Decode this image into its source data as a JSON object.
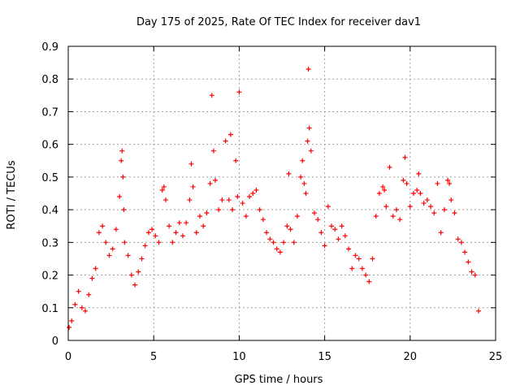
{
  "chart_data": {
    "type": "scatter",
    "title": "Day 175 of 2025, Rate Of TEC Index for receiver dav1",
    "xlabel": "GPS time / hours",
    "ylabel": "ROTI / TECUs",
    "xlim": [
      0,
      25
    ],
    "ylim": [
      0,
      0.9
    ],
    "x_ticks": [
      0,
      5,
      10,
      15,
      20,
      25
    ],
    "y_ticks": [
      0,
      0.1,
      0.2,
      0.3,
      0.4,
      0.5,
      0.6,
      0.7,
      0.8,
      0.9
    ],
    "x_tick_labels": [
      "0",
      "5",
      "10",
      "15",
      "20",
      "25"
    ],
    "y_tick_labels": [
      "0",
      "0.1",
      "0.2",
      "0.3",
      "0.4",
      "0.5",
      "0.6",
      "0.7",
      "0.8",
      "0.9"
    ],
    "grid": true,
    "marker": "+",
    "color": "#ff0000",
    "series": [
      {
        "x": [
          0.05,
          0.2,
          0.4,
          0.6,
          0.8,
          1.0,
          1.2,
          1.4,
          1.6,
          1.8,
          2.0,
          2.2,
          2.4,
          2.6,
          2.8,
          3.0,
          3.1,
          3.15,
          3.2,
          3.25,
          3.3,
          3.5,
          3.7,
          3.9,
          4.1,
          4.3,
          4.5,
          4.7,
          4.9,
          5.1,
          5.3,
          5.5,
          5.6,
          5.7,
          5.9,
          6.1,
          6.3,
          6.5,
          6.7,
          6.9,
          7.1,
          7.2,
          7.3,
          7.5,
          7.7,
          7.9,
          8.1,
          8.3,
          8.4,
          8.5,
          8.6,
          8.8,
          9.0,
          9.2,
          9.4,
          9.5,
          9.6,
          9.8,
          9.9,
          10.0,
          10.2,
          10.4,
          10.6,
          10.8,
          11.0,
          11.2,
          11.4,
          11.6,
          11.8,
          12.0,
          12.2,
          12.4,
          12.6,
          12.8,
          12.9,
          13.0,
          13.2,
          13.4,
          13.6,
          13.7,
          13.8,
          13.9,
          14.0,
          14.05,
          14.1,
          14.2,
          14.4,
          14.6,
          14.8,
          15.0,
          15.2,
          15.4,
          15.6,
          15.8,
          16.0,
          16.2,
          16.4,
          16.6,
          16.8,
          17.0,
          17.2,
          17.4,
          17.6,
          17.8,
          18.0,
          18.2,
          18.4,
          18.5,
          18.6,
          18.8,
          19.0,
          19.2,
          19.4,
          19.6,
          19.7,
          19.8,
          20.0,
          20.2,
          20.4,
          20.5,
          20.6,
          20.8,
          21.0,
          21.2,
          21.4,
          21.6,
          21.8,
          22.0,
          22.2,
          22.3,
          22.4,
          22.6,
          22.8,
          23.0,
          23.2,
          23.4,
          23.6,
          23.8,
          24.0
        ],
        "y": [
          0.04,
          0.06,
          0.11,
          0.15,
          0.1,
          0.09,
          0.14,
          0.19,
          0.22,
          0.33,
          0.35,
          0.3,
          0.26,
          0.28,
          0.34,
          0.44,
          0.55,
          0.58,
          0.5,
          0.4,
          0.3,
          0.26,
          0.2,
          0.17,
          0.21,
          0.25,
          0.29,
          0.33,
          0.34,
          0.32,
          0.3,
          0.46,
          0.47,
          0.43,
          0.35,
          0.3,
          0.33,
          0.36,
          0.32,
          0.36,
          0.43,
          0.54,
          0.47,
          0.33,
          0.38,
          0.35,
          0.39,
          0.48,
          0.75,
          0.58,
          0.49,
          0.4,
          0.43,
          0.61,
          0.43,
          0.63,
          0.4,
          0.55,
          0.44,
          0.76,
          0.42,
          0.38,
          0.44,
          0.45,
          0.46,
          0.4,
          0.37,
          0.33,
          0.31,
          0.3,
          0.28,
          0.27,
          0.3,
          0.35,
          0.51,
          0.34,
          0.3,
          0.38,
          0.5,
          0.55,
          0.48,
          0.45,
          0.61,
          0.83,
          0.65,
          0.58,
          0.39,
          0.37,
          0.33,
          0.29,
          0.41,
          0.35,
          0.34,
          0.31,
          0.35,
          0.32,
          0.28,
          0.22,
          0.26,
          0.25,
          0.22,
          0.2,
          0.18,
          0.25,
          0.38,
          0.45,
          0.47,
          0.46,
          0.41,
          0.53,
          0.38,
          0.4,
          0.37,
          0.49,
          0.56,
          0.48,
          0.41,
          0.45,
          0.46,
          0.51,
          0.45,
          0.42,
          0.43,
          0.41,
          0.39,
          0.48,
          0.33,
          0.4,
          0.49,
          0.48,
          0.43,
          0.39,
          0.31,
          0.3,
          0.27,
          0.24,
          0.21,
          0.2,
          0.09
        ]
      }
    ]
  }
}
